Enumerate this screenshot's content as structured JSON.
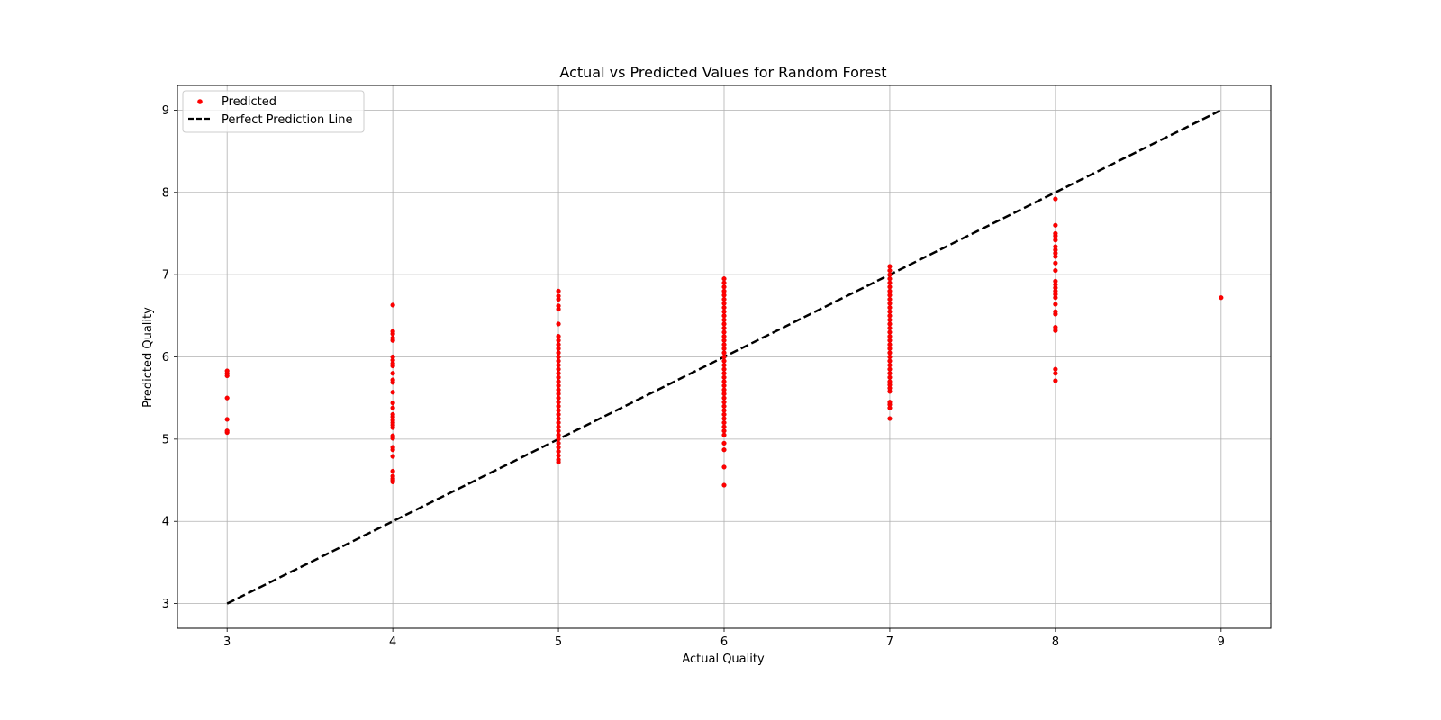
{
  "chart_data": {
    "type": "scatter",
    "title": "Actual vs Predicted Values for Random Forest",
    "xlabel": "Actual Quality",
    "ylabel": "Predicted Quality",
    "xlim": [
      2.7,
      9.3
    ],
    "ylim": [
      2.7,
      9.3
    ],
    "xticks": [
      3,
      4,
      5,
      6,
      7,
      8,
      9
    ],
    "yticks": [
      3,
      4,
      5,
      6,
      7,
      8,
      9
    ],
    "grid": true,
    "legend_position": "upper-left",
    "series": [
      {
        "name": "Predicted",
        "kind": "scatter",
        "color": "#ff0000",
        "points": [
          [
            3,
            5.08
          ],
          [
            3,
            5.1
          ],
          [
            3,
            5.24
          ],
          [
            3,
            5.5
          ],
          [
            3,
            5.77
          ],
          [
            3,
            5.8
          ],
          [
            3,
            5.83
          ],
          [
            4,
            4.48
          ],
          [
            4,
            4.5
          ],
          [
            4,
            4.52
          ],
          [
            4,
            4.55
          ],
          [
            4,
            4.61
          ],
          [
            4,
            4.79
          ],
          [
            4,
            4.87
          ],
          [
            4,
            4.9
          ],
          [
            4,
            5.01
          ],
          [
            4,
            5.04
          ],
          [
            4,
            5.14
          ],
          [
            4,
            5.17
          ],
          [
            4,
            5.2
          ],
          [
            4,
            5.23
          ],
          [
            4,
            5.27
          ],
          [
            4,
            5.3
          ],
          [
            4,
            5.38
          ],
          [
            4,
            5.44
          ],
          [
            4,
            5.57
          ],
          [
            4,
            5.69
          ],
          [
            4,
            5.72
          ],
          [
            4,
            5.8
          ],
          [
            4,
            5.89
          ],
          [
            4,
            5.92
          ],
          [
            4,
            5.96
          ],
          [
            4,
            6.0
          ],
          [
            4,
            6.2
          ],
          [
            4,
            6.23
          ],
          [
            4,
            6.28
          ],
          [
            4,
            6.31
          ],
          [
            4,
            6.63
          ],
          [
            5,
            4.72
          ],
          [
            5,
            4.75
          ],
          [
            5,
            4.8
          ],
          [
            5,
            4.85
          ],
          [
            5,
            4.9
          ],
          [
            5,
            4.95
          ],
          [
            5,
            5.0
          ],
          [
            5,
            5.05
          ],
          [
            5,
            5.1
          ],
          [
            5,
            5.15
          ],
          [
            5,
            5.2
          ],
          [
            5,
            5.25
          ],
          [
            5,
            5.3
          ],
          [
            5,
            5.35
          ],
          [
            5,
            5.4
          ],
          [
            5,
            5.45
          ],
          [
            5,
            5.5
          ],
          [
            5,
            5.55
          ],
          [
            5,
            5.6
          ],
          [
            5,
            5.65
          ],
          [
            5,
            5.7
          ],
          [
            5,
            5.75
          ],
          [
            5,
            5.8
          ],
          [
            5,
            5.85
          ],
          [
            5,
            5.9
          ],
          [
            5,
            5.95
          ],
          [
            5,
            6.0
          ],
          [
            5,
            6.05
          ],
          [
            5,
            6.1
          ],
          [
            5,
            6.15
          ],
          [
            5,
            6.2
          ],
          [
            5,
            6.25
          ],
          [
            5,
            6.4
          ],
          [
            5,
            6.58
          ],
          [
            5,
            6.62
          ],
          [
            5,
            6.7
          ],
          [
            5,
            6.74
          ],
          [
            5,
            6.8
          ],
          [
            6,
            4.44
          ],
          [
            6,
            4.66
          ],
          [
            6,
            4.87
          ],
          [
            6,
            4.95
          ],
          [
            6,
            5.05
          ],
          [
            6,
            5.1
          ],
          [
            6,
            5.15
          ],
          [
            6,
            5.2
          ],
          [
            6,
            5.25
          ],
          [
            6,
            5.3
          ],
          [
            6,
            5.35
          ],
          [
            6,
            5.4
          ],
          [
            6,
            5.45
          ],
          [
            6,
            5.5
          ],
          [
            6,
            5.55
          ],
          [
            6,
            5.6
          ],
          [
            6,
            5.65
          ],
          [
            6,
            5.7
          ],
          [
            6,
            5.75
          ],
          [
            6,
            5.8
          ],
          [
            6,
            5.85
          ],
          [
            6,
            5.9
          ],
          [
            6,
            5.95
          ],
          [
            6,
            6.0
          ],
          [
            6,
            6.05
          ],
          [
            6,
            6.1
          ],
          [
            6,
            6.15
          ],
          [
            6,
            6.2
          ],
          [
            6,
            6.25
          ],
          [
            6,
            6.3
          ],
          [
            6,
            6.35
          ],
          [
            6,
            6.4
          ],
          [
            6,
            6.45
          ],
          [
            6,
            6.5
          ],
          [
            6,
            6.55
          ],
          [
            6,
            6.6
          ],
          [
            6,
            6.65
          ],
          [
            6,
            6.7
          ],
          [
            6,
            6.75
          ],
          [
            6,
            6.8
          ],
          [
            6,
            6.85
          ],
          [
            6,
            6.9
          ],
          [
            6,
            6.95
          ],
          [
            7,
            5.25
          ],
          [
            7,
            5.38
          ],
          [
            7,
            5.42
          ],
          [
            7,
            5.45
          ],
          [
            7,
            5.58
          ],
          [
            7,
            5.62
          ],
          [
            7,
            5.66
          ],
          [
            7,
            5.7
          ],
          [
            7,
            5.75
          ],
          [
            7,
            5.8
          ],
          [
            7,
            5.85
          ],
          [
            7,
            5.9
          ],
          [
            7,
            5.95
          ],
          [
            7,
            6.0
          ],
          [
            7,
            6.05
          ],
          [
            7,
            6.1
          ],
          [
            7,
            6.15
          ],
          [
            7,
            6.2
          ],
          [
            7,
            6.25
          ],
          [
            7,
            6.3
          ],
          [
            7,
            6.35
          ],
          [
            7,
            6.4
          ],
          [
            7,
            6.45
          ],
          [
            7,
            6.5
          ],
          [
            7,
            6.55
          ],
          [
            7,
            6.6
          ],
          [
            7,
            6.65
          ],
          [
            7,
            6.7
          ],
          [
            7,
            6.75
          ],
          [
            7,
            6.8
          ],
          [
            7,
            6.85
          ],
          [
            7,
            6.9
          ],
          [
            7,
            6.95
          ],
          [
            7,
            7.0
          ],
          [
            7,
            7.05
          ],
          [
            7,
            7.1
          ],
          [
            8,
            5.71
          ],
          [
            8,
            5.8
          ],
          [
            8,
            5.85
          ],
          [
            8,
            6.32
          ],
          [
            8,
            6.36
          ],
          [
            8,
            6.52
          ],
          [
            8,
            6.55
          ],
          [
            8,
            6.64
          ],
          [
            8,
            6.72
          ],
          [
            8,
            6.76
          ],
          [
            8,
            6.8
          ],
          [
            8,
            6.84
          ],
          [
            8,
            6.88
          ],
          [
            8,
            6.92
          ],
          [
            8,
            7.05
          ],
          [
            8,
            7.14
          ],
          [
            8,
            7.22
          ],
          [
            8,
            7.26
          ],
          [
            8,
            7.3
          ],
          [
            8,
            7.34
          ],
          [
            8,
            7.42
          ],
          [
            8,
            7.47
          ],
          [
            8,
            7.5
          ],
          [
            8,
            7.6
          ],
          [
            8,
            7.92
          ],
          [
            9,
            6.72
          ]
        ]
      },
      {
        "name": "Perfect Prediction Line",
        "kind": "line",
        "color": "#000000",
        "dash": "dashed",
        "x": [
          3,
          9
        ],
        "y": [
          3,
          9
        ]
      }
    ]
  }
}
